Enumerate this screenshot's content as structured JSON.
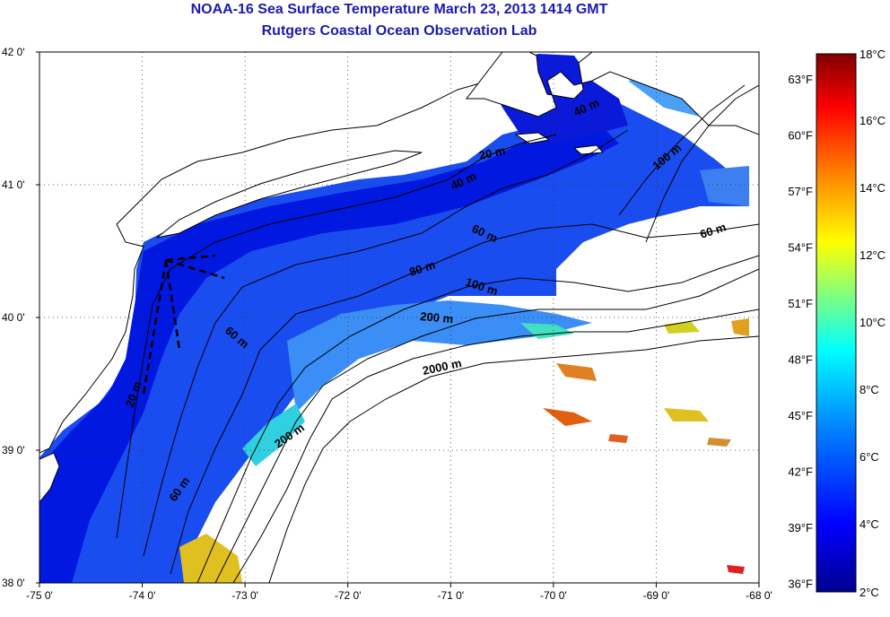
{
  "title": {
    "line1": "NOAA-16 Sea Surface Temperature March 23, 2013 1414 GMT",
    "line2": "Rutgers Coastal Ocean Observation Lab"
  },
  "map": {
    "lon_ticks": [
      "-75 0'",
      "-74 0'",
      "-73 0'",
      "-72 0'",
      "-71 0'",
      "-70 0'",
      "-69 0'",
      "-68 0'"
    ],
    "lat_ticks": [
      "42 0'",
      "41 0'",
      "40 0'",
      "39 0'",
      "38 0'"
    ],
    "lon_range": [
      -75,
      -68
    ],
    "lat_range": [
      38,
      42
    ],
    "land_color": "#ffffff",
    "isobath_labels": [
      "40 m",
      "100 m",
      "20 m",
      "40 m",
      "60 m",
      "60 m",
      "80 m",
      "100 m",
      "200 m",
      "2000 m",
      "60 m",
      "20 m",
      "200 m",
      "60 m"
    ]
  },
  "colorbar": {
    "celsius_labels": [
      "18°C",
      "16°C",
      "14°C",
      "12°C",
      "10°C",
      "8°C",
      "6°C",
      "4°C",
      "2°C"
    ],
    "fahrenheit_labels": [
      "63°F",
      "60°F",
      "57°F",
      "54°F",
      "51°F",
      "48°F",
      "45°F",
      "42°F",
      "39°F",
      "36°F"
    ],
    "min_celsius": 2,
    "max_celsius": 18,
    "colors": [
      "#00008f",
      "#0000ff",
      "#0080ff",
      "#00ffff",
      "#80ff80",
      "#ffff00",
      "#ff8000",
      "#ff0000",
      "#800000"
    ]
  }
}
